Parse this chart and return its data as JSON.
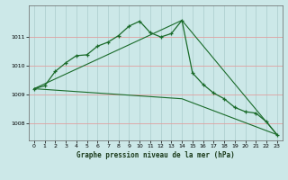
{
  "title": "Graphe pression niveau de la mer (hPa)",
  "bg_color": "#cce8e8",
  "plot_bg_color": "#cce8e8",
  "grid_color": "#aacccc",
  "line_color": "#1a6b2a",
  "xlim": [
    -0.5,
    23.5
  ],
  "ylim": [
    1007.4,
    1012.1
  ],
  "yticks": [
    1008,
    1009,
    1010,
    1011
  ],
  "xticks": [
    0,
    1,
    2,
    3,
    4,
    5,
    6,
    7,
    8,
    9,
    10,
    11,
    12,
    13,
    14,
    15,
    16,
    17,
    18,
    19,
    20,
    21,
    22,
    23
  ],
  "series1": {
    "x": [
      0,
      1,
      2,
      3,
      4,
      5,
      6,
      7,
      8,
      9,
      10,
      11,
      12,
      13,
      14,
      15,
      16,
      17,
      18,
      19,
      20,
      21,
      22,
      23
    ],
    "y": [
      1009.2,
      1009.3,
      1009.8,
      1010.1,
      1010.35,
      1010.38,
      1010.68,
      1010.82,
      1011.05,
      1011.38,
      1011.55,
      1011.15,
      1011.0,
      1011.12,
      1011.58,
      1009.75,
      1009.35,
      1009.05,
      1008.85,
      1008.55,
      1008.4,
      1008.35,
      1008.05,
      1007.6
    ]
  },
  "series2": {
    "x": [
      0,
      14,
      23
    ],
    "y": [
      1009.2,
      1011.58,
      1007.6
    ]
  },
  "series3": {
    "x": [
      0,
      14,
      23
    ],
    "y": [
      1009.2,
      1008.85,
      1007.6
    ]
  }
}
